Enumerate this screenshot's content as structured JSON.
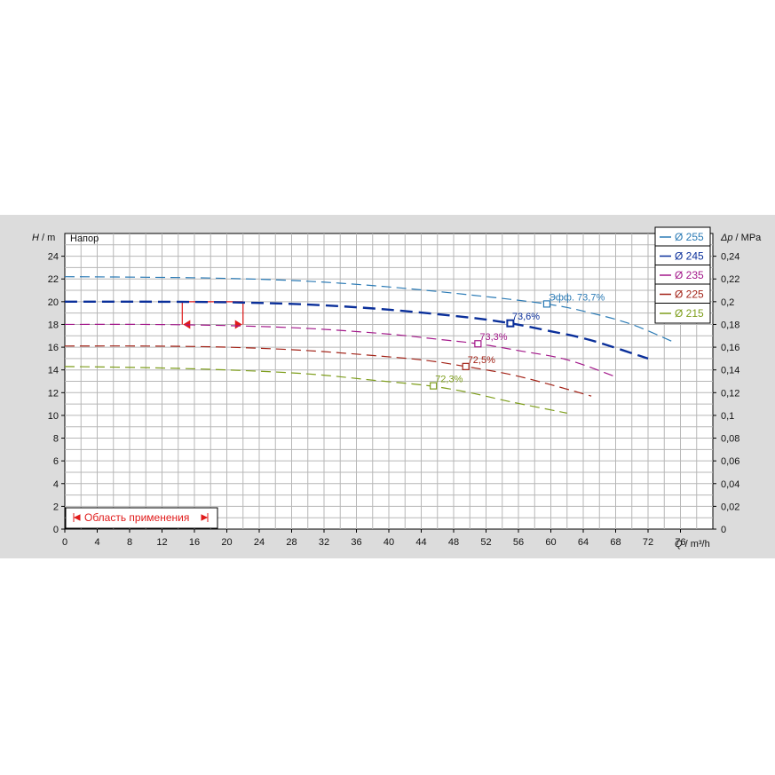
{
  "chart_data": {
    "type": "line",
    "title": "Напор",
    "xlabel": {
      "symbol": "Q",
      "unit": " / m³/h"
    },
    "ylabel": {
      "symbol": "H",
      "unit": " / m"
    },
    "y2label": {
      "symbol": "Δp",
      "unit": " / MPa"
    },
    "xlim": [
      0,
      80
    ],
    "ylim": [
      0,
      26
    ],
    "y2lim": [
      0,
      0.26
    ],
    "x_ticks": [
      "0",
      "4",
      "8",
      "12",
      "16",
      "20",
      "24",
      "28",
      "32",
      "36",
      "40",
      "44",
      "48",
      "52",
      "56",
      "60",
      "64",
      "68",
      "72",
      "76"
    ],
    "y_ticks": [
      "0",
      "2",
      "4",
      "6",
      "8",
      "10",
      "12",
      "14",
      "16",
      "18",
      "20",
      "22",
      "24"
    ],
    "y2_ticks": [
      "0",
      "0,02",
      "0,04",
      "0,06",
      "0,08",
      "0,1",
      "0,12",
      "0,14",
      "0,16",
      "0,18",
      "0,2",
      "0,22",
      "0,24"
    ],
    "grid": true,
    "legend_position": "top-right",
    "series": [
      {
        "name": "Ø 255",
        "color": "#2a7ab5",
        "x": [
          0,
          10,
          20,
          30,
          40,
          50,
          59.5,
          65,
          70,
          75
        ],
        "y": [
          22.2,
          22.15,
          22.05,
          21.8,
          21.3,
          20.6,
          19.8,
          19.0,
          18.0,
          16.5
        ],
        "bep": {
          "x": 59.5,
          "y": 19.8,
          "label": "Эфф. 73,7%"
        }
      },
      {
        "name": "Ø 245",
        "color": "#0a2f9a",
        "x": [
          0,
          10,
          20,
          30,
          40,
          50,
          55,
          60,
          65,
          72
        ],
        "y": [
          20.0,
          20.0,
          19.95,
          19.75,
          19.3,
          18.6,
          18.1,
          17.4,
          16.6,
          15.0
        ],
        "bep": {
          "x": 55,
          "y": 18.1,
          "label": "73,6%"
        }
      },
      {
        "name": "Ø 235",
        "color": "#a3188a",
        "x": [
          0,
          10,
          20,
          30,
          40,
          46,
          51,
          56,
          62,
          68
        ],
        "y": [
          18.0,
          18.0,
          17.9,
          17.65,
          17.15,
          16.7,
          16.3,
          15.7,
          14.9,
          13.4
        ],
        "bep": {
          "x": 51,
          "y": 16.3,
          "label": "73,3%"
        }
      },
      {
        "name": "Ø 225",
        "color": "#a32318",
        "x": [
          0,
          10,
          20,
          30,
          40,
          45,
          49.5,
          55,
          60,
          65
        ],
        "y": [
          16.1,
          16.1,
          16.0,
          15.7,
          15.15,
          14.8,
          14.3,
          13.6,
          12.7,
          11.7
        ],
        "bep": {
          "x": 49.5,
          "y": 14.3,
          "label": "72,5%"
        }
      },
      {
        "name": "Ø 215",
        "color": "#7e9e1c",
        "x": [
          0,
          10,
          20,
          30,
          38,
          45,
          50,
          55,
          62
        ],
        "y": [
          14.3,
          14.2,
          14.0,
          13.65,
          13.1,
          12.6,
          12.0,
          11.2,
          10.2
        ],
        "bep": {
          "x": 45.5,
          "y": 12.6,
          "label": "72,3%"
        }
      }
    ],
    "operating_range": {
      "x_from": 14.5,
      "x_to": 22,
      "y": 20.0,
      "y_low": 18.0,
      "color": "#e01a1a"
    },
    "application_area_label": "Область применения"
  }
}
